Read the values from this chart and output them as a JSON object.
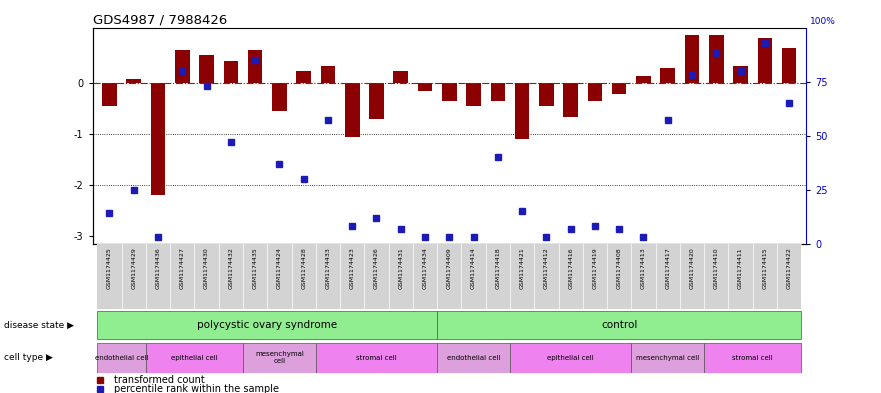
{
  "title": "GDS4987 / 7988426",
  "samples": [
    "GSM1174425",
    "GSM1174429",
    "GSM1174436",
    "GSM1174427",
    "GSM1174430",
    "GSM1174432",
    "GSM1174435",
    "GSM1174424",
    "GSM1174428",
    "GSM1174433",
    "GSM1174423",
    "GSM1174426",
    "GSM1174431",
    "GSM1174434",
    "GSM1174409",
    "GSM1174414",
    "GSM1174418",
    "GSM1174421",
    "GSM1174412",
    "GSM1174416",
    "GSM1174419",
    "GSM1174408",
    "GSM1174413",
    "GSM1174417",
    "GSM1174420",
    "GSM1174410",
    "GSM1174411",
    "GSM1174415",
    "GSM1174422"
  ],
  "bar_values": [
    -0.45,
    0.08,
    -2.2,
    0.65,
    0.55,
    0.45,
    0.65,
    -0.55,
    0.25,
    0.35,
    -1.05,
    -0.7,
    0.25,
    -0.15,
    -0.35,
    -0.45,
    -0.35,
    -1.1,
    -0.45,
    -0.65,
    -0.35,
    -0.2,
    0.15,
    0.3,
    0.95,
    0.95,
    0.35,
    0.9,
    0.7
  ],
  "percentile_values": [
    14,
    25,
    3,
    80,
    73,
    47,
    85,
    37,
    30,
    57,
    8,
    12,
    7,
    3,
    3,
    3,
    40,
    15,
    3,
    7,
    8,
    7,
    3,
    57,
    78,
    88,
    80,
    93,
    65
  ],
  "bar_color": "#8B0000",
  "dot_color": "#1C1CB4",
  "zero_line_color": "#CC0000",
  "dotted_line_color": "#000000",
  "ylim_left": [
    -3.15,
    1.1
  ],
  "ylim_right": [
    0,
    100
  ],
  "pcos_color": "#90EE90",
  "ctrl_color": "#90EE90",
  "cell_type_groups": [
    {
      "label": "endothelial cell",
      "start": 0,
      "end": 1,
      "color": "#DDA0DD"
    },
    {
      "label": "epithelial cell",
      "start": 2,
      "end": 5,
      "color": "#EE82EE"
    },
    {
      "label": "mesenchymal\ncell",
      "start": 6,
      "end": 8,
      "color": "#DDA0DD"
    },
    {
      "label": "stromal cell",
      "start": 9,
      "end": 13,
      "color": "#EE82EE"
    },
    {
      "label": "endothelial cell",
      "start": 14,
      "end": 16,
      "color": "#DDA0DD"
    },
    {
      "label": "epithelial cell",
      "start": 17,
      "end": 21,
      "color": "#EE82EE"
    },
    {
      "label": "mesenchymal cell",
      "start": 22,
      "end": 24,
      "color": "#DDA0DD"
    },
    {
      "label": "stromal cell",
      "start": 25,
      "end": 28,
      "color": "#EE82EE"
    }
  ],
  "right_yticks": [
    0,
    25,
    50,
    75
  ],
  "right_ytick_labels": [
    "0",
    "25",
    "50",
    "75"
  ],
  "left_yticks": [
    0,
    -1,
    -2,
    -3
  ],
  "left_ytick_labels": [
    "0",
    "-1",
    "-2",
    "-3"
  ]
}
